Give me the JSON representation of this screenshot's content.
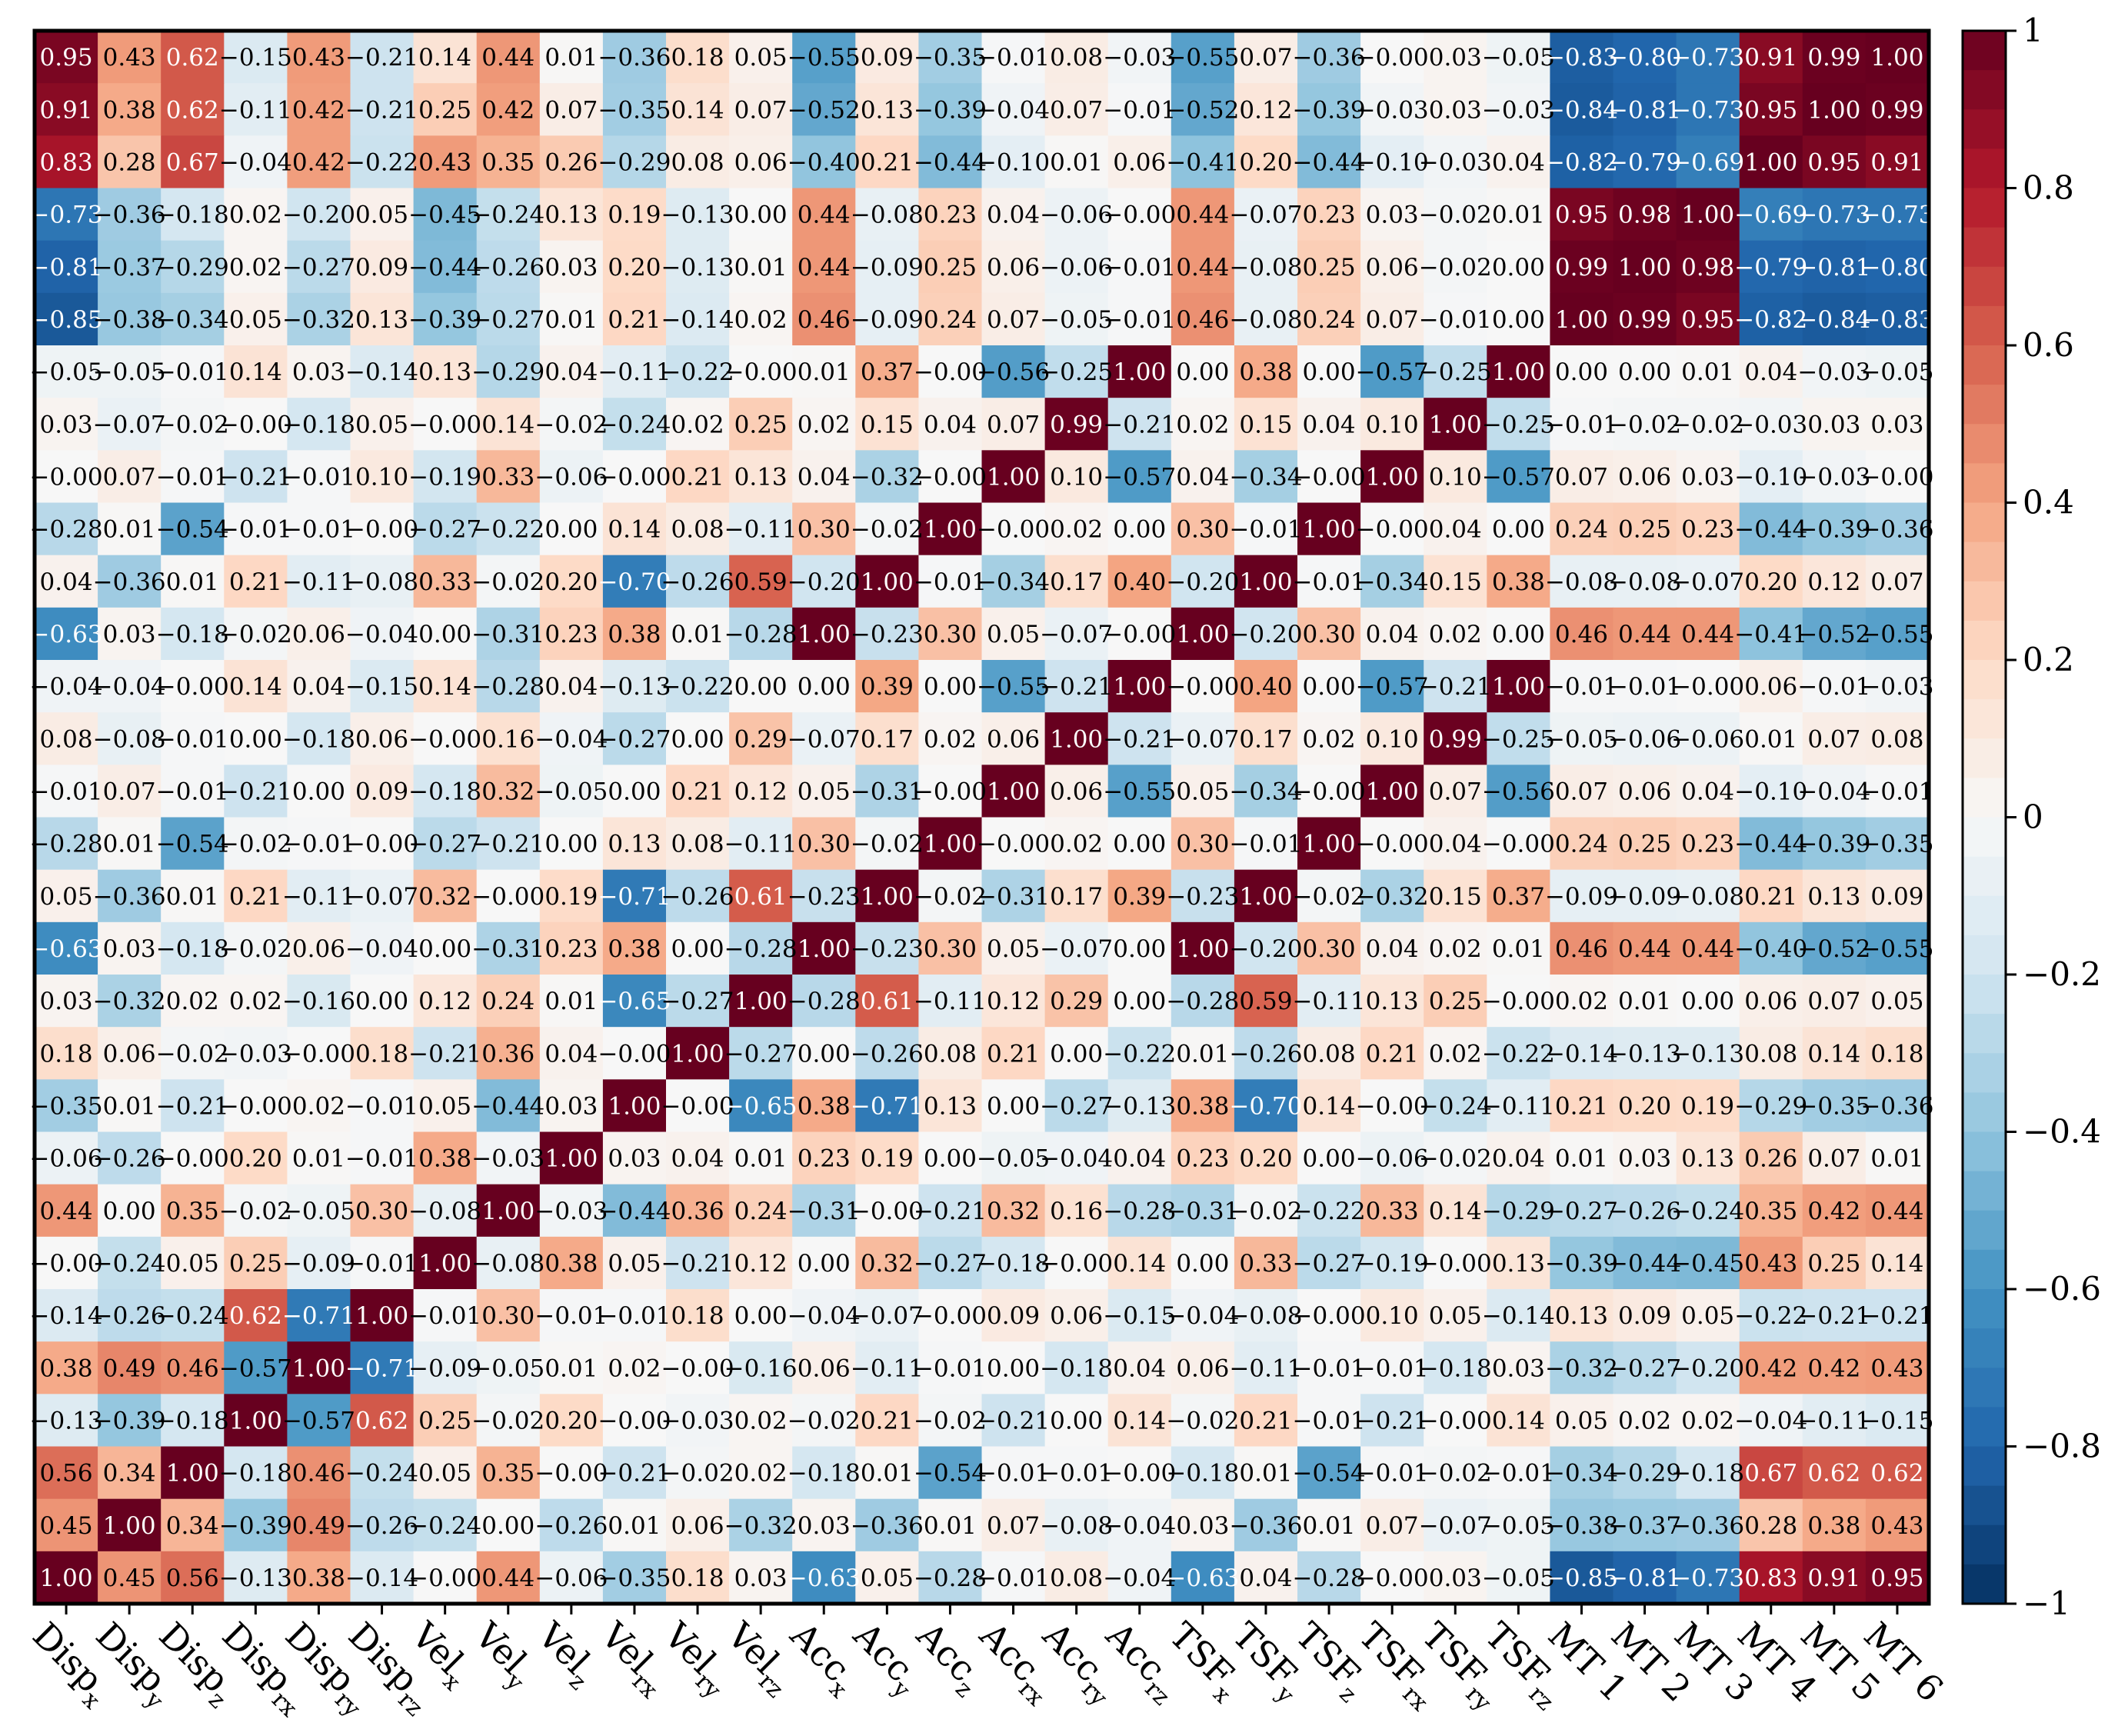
{
  "chart_data": {
    "type": "heatmap",
    "title": "",
    "x_labels": [
      {
        "base": "Disp",
        "sub": "x"
      },
      {
        "base": "Disp",
        "sub": "y"
      },
      {
        "base": "Disp",
        "sub": "z"
      },
      {
        "base": "Disp",
        "sub": "rx"
      },
      {
        "base": "Disp",
        "sub": "ry"
      },
      {
        "base": "Disp",
        "sub": "rz"
      },
      {
        "base": "Vel",
        "sub": "x"
      },
      {
        "base": "Vel",
        "sub": "y"
      },
      {
        "base": "Vel",
        "sub": "z"
      },
      {
        "base": "Vel",
        "sub": "rx"
      },
      {
        "base": "Vel",
        "sub": "ry"
      },
      {
        "base": "Vel",
        "sub": "rz"
      },
      {
        "base": "Acc",
        "sub": "x"
      },
      {
        "base": "Acc",
        "sub": "y"
      },
      {
        "base": "Acc",
        "sub": "z"
      },
      {
        "base": "Acc",
        "sub": "rx"
      },
      {
        "base": "Acc",
        "sub": "ry"
      },
      {
        "base": "Acc",
        "sub": "rz"
      },
      {
        "base": "TSF",
        "sub": "x"
      },
      {
        "base": "TSF",
        "sub": "y"
      },
      {
        "base": "TSF",
        "sub": "z"
      },
      {
        "base": "TSF",
        "sub": "rx"
      },
      {
        "base": "TSF",
        "sub": "ry"
      },
      {
        "base": "TSF",
        "sub": "rz"
      },
      {
        "base": "MT 1",
        "sub": ""
      },
      {
        "base": "MT 2",
        "sub": ""
      },
      {
        "base": "MT 3",
        "sub": ""
      },
      {
        "base": "MT 4",
        "sub": ""
      },
      {
        "base": "MT 5",
        "sub": ""
      },
      {
        "base": "MT 6",
        "sub": ""
      }
    ],
    "values": [
      [
        0.95,
        0.43,
        0.62,
        -0.15,
        0.43,
        -0.21,
        0.14,
        0.44,
        0.01,
        -0.36,
        0.18,
        0.05,
        -0.55,
        0.09,
        -0.35,
        -0.01,
        0.08,
        -0.03,
        -0.55,
        0.07,
        -0.36,
        -0.0,
        0.03,
        -0.05,
        -0.83,
        -0.8,
        -0.73,
        0.91,
        0.99,
        1.0
      ],
      [
        0.91,
        0.38,
        0.62,
        -0.11,
        0.42,
        -0.21,
        0.25,
        0.42,
        0.07,
        -0.35,
        0.14,
        0.07,
        -0.52,
        0.13,
        -0.39,
        -0.04,
        0.07,
        -0.01,
        -0.52,
        0.12,
        -0.39,
        -0.03,
        0.03,
        -0.03,
        -0.84,
        -0.81,
        -0.73,
        0.95,
        1.0,
        0.99
      ],
      [
        0.83,
        0.28,
        0.67,
        -0.04,
        0.42,
        -0.22,
        0.43,
        0.35,
        0.26,
        -0.29,
        0.08,
        0.06,
        -0.4,
        0.21,
        -0.44,
        -0.1,
        0.01,
        0.06,
        -0.41,
        0.2,
        -0.44,
        -0.1,
        -0.03,
        0.04,
        -0.82,
        -0.79,
        -0.69,
        1.0,
        0.95,
        0.91
      ],
      [
        -0.73,
        -0.36,
        -0.18,
        0.02,
        -0.2,
        0.05,
        -0.45,
        -0.24,
        0.13,
        0.19,
        -0.13,
        0.0,
        0.44,
        -0.08,
        0.23,
        0.04,
        -0.06,
        -0.0,
        0.44,
        -0.07,
        0.23,
        0.03,
        -0.02,
        0.01,
        0.95,
        0.98,
        1.0,
        -0.69,
        -0.73,
        -0.73
      ],
      [
        -0.81,
        -0.37,
        -0.29,
        0.02,
        -0.27,
        0.09,
        -0.44,
        -0.26,
        0.03,
        0.2,
        -0.13,
        0.01,
        0.44,
        -0.09,
        0.25,
        0.06,
        -0.06,
        -0.01,
        0.44,
        -0.08,
        0.25,
        0.06,
        -0.02,
        0.0,
        0.99,
        1.0,
        0.98,
        -0.79,
        -0.81,
        -0.8
      ],
      [
        -0.85,
        -0.38,
        -0.34,
        0.05,
        -0.32,
        0.13,
        -0.39,
        -0.27,
        0.01,
        0.21,
        -0.14,
        0.02,
        0.46,
        -0.09,
        0.24,
        0.07,
        -0.05,
        -0.01,
        0.46,
        -0.08,
        0.24,
        0.07,
        -0.01,
        0.0,
        1.0,
        0.99,
        0.95,
        -0.82,
        -0.84,
        -0.83
      ],
      [
        -0.05,
        -0.05,
        -0.01,
        0.14,
        0.03,
        -0.14,
        0.13,
        -0.29,
        0.04,
        -0.11,
        -0.22,
        -0.0,
        0.01,
        0.37,
        -0.0,
        -0.56,
        -0.25,
        1.0,
        0.0,
        0.38,
        0.0,
        -0.57,
        -0.25,
        1.0,
        0.0,
        0.0,
        0.01,
        0.04,
        -0.03,
        -0.05
      ],
      [
        0.03,
        -0.07,
        -0.02,
        -0.0,
        -0.18,
        0.05,
        -0.0,
        0.14,
        -0.02,
        -0.24,
        0.02,
        0.25,
        0.02,
        0.15,
        0.04,
        0.07,
        0.99,
        -0.21,
        0.02,
        0.15,
        0.04,
        0.1,
        1.0,
        -0.25,
        -0.01,
        -0.02,
        -0.02,
        -0.03,
        0.03,
        0.03
      ],
      [
        -0.0,
        0.07,
        -0.01,
        -0.21,
        -0.01,
        0.1,
        -0.19,
        0.33,
        -0.06,
        -0.0,
        0.21,
        0.13,
        0.04,
        -0.32,
        -0.0,
        1.0,
        0.1,
        -0.57,
        0.04,
        -0.34,
        -0.0,
        1.0,
        0.1,
        -0.57,
        0.07,
        0.06,
        0.03,
        -0.1,
        -0.03,
        -0.0
      ],
      [
        -0.28,
        0.01,
        -0.54,
        -0.01,
        -0.01,
        -0.0,
        -0.27,
        -0.22,
        0.0,
        0.14,
        0.08,
        -0.11,
        0.3,
        -0.02,
        1.0,
        -0.0,
        0.02,
        0.0,
        0.3,
        -0.01,
        1.0,
        -0.0,
        0.04,
        0.0,
        0.24,
        0.25,
        0.23,
        -0.44,
        -0.39,
        -0.36
      ],
      [
        0.04,
        -0.36,
        0.01,
        0.21,
        -0.11,
        -0.08,
        0.33,
        -0.02,
        0.2,
        -0.7,
        -0.26,
        0.59,
        -0.2,
        1.0,
        -0.01,
        -0.34,
        0.17,
        0.4,
        -0.2,
        1.0,
        -0.01,
        -0.34,
        0.15,
        0.38,
        -0.08,
        -0.08,
        -0.07,
        0.2,
        0.12,
        0.07
      ],
      [
        -0.63,
        0.03,
        -0.18,
        -0.02,
        0.06,
        -0.04,
        0.0,
        -0.31,
        0.23,
        0.38,
        0.01,
        -0.28,
        1.0,
        -0.23,
        0.3,
        0.05,
        -0.07,
        -0.0,
        1.0,
        -0.2,
        0.3,
        0.04,
        0.02,
        0.0,
        0.46,
        0.44,
        0.44,
        -0.41,
        -0.52,
        -0.55
      ],
      [
        -0.04,
        -0.04,
        -0.0,
        0.14,
        0.04,
        -0.15,
        0.14,
        -0.28,
        0.04,
        -0.13,
        -0.22,
        0.0,
        0.0,
        0.39,
        0.0,
        -0.55,
        -0.21,
        1.0,
        -0.0,
        0.4,
        0.0,
        -0.57,
        -0.21,
        1.0,
        -0.01,
        -0.01,
        -0.0,
        0.06,
        -0.01,
        -0.03
      ],
      [
        0.08,
        -0.08,
        -0.01,
        0.0,
        -0.18,
        0.06,
        -0.0,
        0.16,
        -0.04,
        -0.27,
        0.0,
        0.29,
        -0.07,
        0.17,
        0.02,
        0.06,
        1.0,
        -0.21,
        -0.07,
        0.17,
        0.02,
        0.1,
        0.99,
        -0.25,
        -0.05,
        -0.06,
        -0.06,
        0.01,
        0.07,
        0.08
      ],
      [
        -0.01,
        0.07,
        -0.01,
        -0.21,
        0.0,
        0.09,
        -0.18,
        0.32,
        -0.05,
        0.0,
        0.21,
        0.12,
        0.05,
        -0.31,
        -0.0,
        1.0,
        0.06,
        -0.55,
        0.05,
        -0.34,
        -0.0,
        1.0,
        0.07,
        -0.56,
        0.07,
        0.06,
        0.04,
        -0.1,
        -0.04,
        -0.01
      ],
      [
        -0.28,
        0.01,
        -0.54,
        -0.02,
        -0.01,
        -0.0,
        -0.27,
        -0.21,
        0.0,
        0.13,
        0.08,
        -0.11,
        0.3,
        -0.02,
        1.0,
        -0.0,
        0.02,
        0.0,
        0.3,
        -0.01,
        1.0,
        -0.0,
        0.04,
        -0.0,
        0.24,
        0.25,
        0.23,
        -0.44,
        -0.39,
        -0.35
      ],
      [
        0.05,
        -0.36,
        0.01,
        0.21,
        -0.11,
        -0.07,
        0.32,
        -0.0,
        0.19,
        -0.71,
        -0.26,
        0.61,
        -0.23,
        1.0,
        -0.02,
        -0.31,
        0.17,
        0.39,
        -0.23,
        1.0,
        -0.02,
        -0.32,
        0.15,
        0.37,
        -0.09,
        -0.09,
        -0.08,
        0.21,
        0.13,
        0.09
      ],
      [
        -0.63,
        0.03,
        -0.18,
        -0.02,
        0.06,
        -0.04,
        0.0,
        -0.31,
        0.23,
        0.38,
        0.0,
        -0.28,
        1.0,
        -0.23,
        0.3,
        0.05,
        -0.07,
        0.0,
        1.0,
        -0.2,
        0.3,
        0.04,
        0.02,
        0.01,
        0.46,
        0.44,
        0.44,
        -0.4,
        -0.52,
        -0.55
      ],
      [
        0.03,
        -0.32,
        0.02,
        0.02,
        -0.16,
        0.0,
        0.12,
        0.24,
        0.01,
        -0.65,
        -0.27,
        1.0,
        -0.28,
        0.61,
        -0.11,
        0.12,
        0.29,
        0.0,
        -0.28,
        0.59,
        -0.11,
        0.13,
        0.25,
        -0.0,
        0.02,
        0.01,
        0.0,
        0.06,
        0.07,
        0.05
      ],
      [
        0.18,
        0.06,
        -0.02,
        -0.03,
        -0.0,
        0.18,
        -0.21,
        0.36,
        0.04,
        -0.0,
        1.0,
        -0.27,
        0.0,
        -0.26,
        0.08,
        0.21,
        0.0,
        -0.22,
        0.01,
        -0.26,
        0.08,
        0.21,
        0.02,
        -0.22,
        -0.14,
        -0.13,
        -0.13,
        0.08,
        0.14,
        0.18
      ],
      [
        -0.35,
        0.01,
        -0.21,
        -0.0,
        0.02,
        -0.01,
        0.05,
        -0.44,
        0.03,
        1.0,
        -0.0,
        -0.65,
        0.38,
        -0.71,
        0.13,
        0.0,
        -0.27,
        -0.13,
        0.38,
        -0.7,
        0.14,
        -0.0,
        -0.24,
        -0.11,
        0.21,
        0.2,
        0.19,
        -0.29,
        -0.35,
        -0.36
      ],
      [
        -0.06,
        -0.26,
        -0.0,
        0.2,
        0.01,
        -0.01,
        0.38,
        -0.03,
        1.0,
        0.03,
        0.04,
        0.01,
        0.23,
        0.19,
        0.0,
        -0.05,
        -0.04,
        0.04,
        0.23,
        0.2,
        0.0,
        -0.06,
        -0.02,
        0.04,
        0.01,
        0.03,
        0.13,
        0.26,
        0.07,
        0.01
      ],
      [
        0.44,
        0.0,
        0.35,
        -0.02,
        -0.05,
        0.3,
        -0.08,
        1.0,
        -0.03,
        -0.44,
        0.36,
        0.24,
        -0.31,
        -0.0,
        -0.21,
        0.32,
        0.16,
        -0.28,
        -0.31,
        -0.02,
        -0.22,
        0.33,
        0.14,
        -0.29,
        -0.27,
        -0.26,
        -0.24,
        0.35,
        0.42,
        0.44
      ],
      [
        -0.0,
        -0.24,
        0.05,
        0.25,
        -0.09,
        -0.01,
        1.0,
        -0.08,
        0.38,
        0.05,
        -0.21,
        0.12,
        0.0,
        0.32,
        -0.27,
        -0.18,
        -0.0,
        0.14,
        0.0,
        0.33,
        -0.27,
        -0.19,
        -0.0,
        0.13,
        -0.39,
        -0.44,
        -0.45,
        0.43,
        0.25,
        0.14
      ],
      [
        -0.14,
        -0.26,
        -0.24,
        0.62,
        -0.71,
        1.0,
        -0.01,
        0.3,
        -0.01,
        -0.01,
        0.18,
        0.0,
        -0.04,
        -0.07,
        -0.0,
        0.09,
        0.06,
        -0.15,
        -0.04,
        -0.08,
        -0.0,
        0.1,
        0.05,
        -0.14,
        0.13,
        0.09,
        0.05,
        -0.22,
        -0.21,
        -0.21
      ],
      [
        0.38,
        0.49,
        0.46,
        -0.57,
        1.0,
        -0.71,
        -0.09,
        -0.05,
        0.01,
        0.02,
        -0.0,
        -0.16,
        0.06,
        -0.11,
        -0.01,
        0.0,
        -0.18,
        0.04,
        0.06,
        -0.11,
        -0.01,
        -0.01,
        -0.18,
        0.03,
        -0.32,
        -0.27,
        -0.2,
        0.42,
        0.42,
        0.43
      ],
      [
        -0.13,
        -0.39,
        -0.18,
        1.0,
        -0.57,
        0.62,
        0.25,
        -0.02,
        0.2,
        -0.0,
        -0.03,
        0.02,
        -0.02,
        0.21,
        -0.02,
        -0.21,
        0.0,
        0.14,
        -0.02,
        0.21,
        -0.01,
        -0.21,
        -0.0,
        0.14,
        0.05,
        0.02,
        0.02,
        -0.04,
        -0.11,
        -0.15
      ],
      [
        0.56,
        0.34,
        1.0,
        -0.18,
        0.46,
        -0.24,
        0.05,
        0.35,
        -0.0,
        -0.21,
        -0.02,
        0.02,
        -0.18,
        0.01,
        -0.54,
        -0.01,
        -0.01,
        -0.0,
        -0.18,
        0.01,
        -0.54,
        -0.01,
        -0.02,
        -0.01,
        -0.34,
        -0.29,
        -0.18,
        0.67,
        0.62,
        0.62
      ],
      [
        0.45,
        1.0,
        0.34,
        -0.39,
        0.49,
        -0.26,
        -0.24,
        0.0,
        -0.26,
        0.01,
        0.06,
        -0.32,
        0.03,
        -0.36,
        0.01,
        0.07,
        -0.08,
        -0.04,
        0.03,
        -0.36,
        0.01,
        0.07,
        -0.07,
        -0.05,
        -0.38,
        -0.37,
        -0.36,
        0.28,
        0.38,
        0.43
      ],
      [
        1.0,
        0.45,
        0.56,
        -0.13,
        0.38,
        -0.14,
        -0.0,
        0.44,
        -0.06,
        -0.35,
        0.18,
        0.03,
        -0.63,
        0.05,
        -0.28,
        -0.01,
        0.08,
        -0.04,
        -0.63,
        0.04,
        -0.28,
        -0.0,
        0.03,
        -0.05,
        -0.85,
        -0.81,
        -0.73,
        0.83,
        0.91,
        0.95
      ]
    ],
    "colorbar": {
      "range": [
        -1,
        1
      ],
      "ticks": [
        1,
        0.8,
        0.6,
        0.4,
        0.2,
        0,
        -0.2,
        -0.4,
        -0.6,
        -0.8,
        -1
      ],
      "tick_labels": [
        "1",
        "0.8",
        "0.6",
        "0.4",
        "0.2",
        "0",
        "−0.2",
        "−0.4",
        "−0.6",
        "−0.8",
        "−1"
      ],
      "colormap": "RdBu_r",
      "stops": [
        "#053061",
        "#2166ac",
        "#4393c3",
        "#92c5de",
        "#d1e5f0",
        "#f7f7f7",
        "#fddbc7",
        "#f4a582",
        "#d6604d",
        "#b2182b",
        "#67001f"
      ]
    }
  }
}
